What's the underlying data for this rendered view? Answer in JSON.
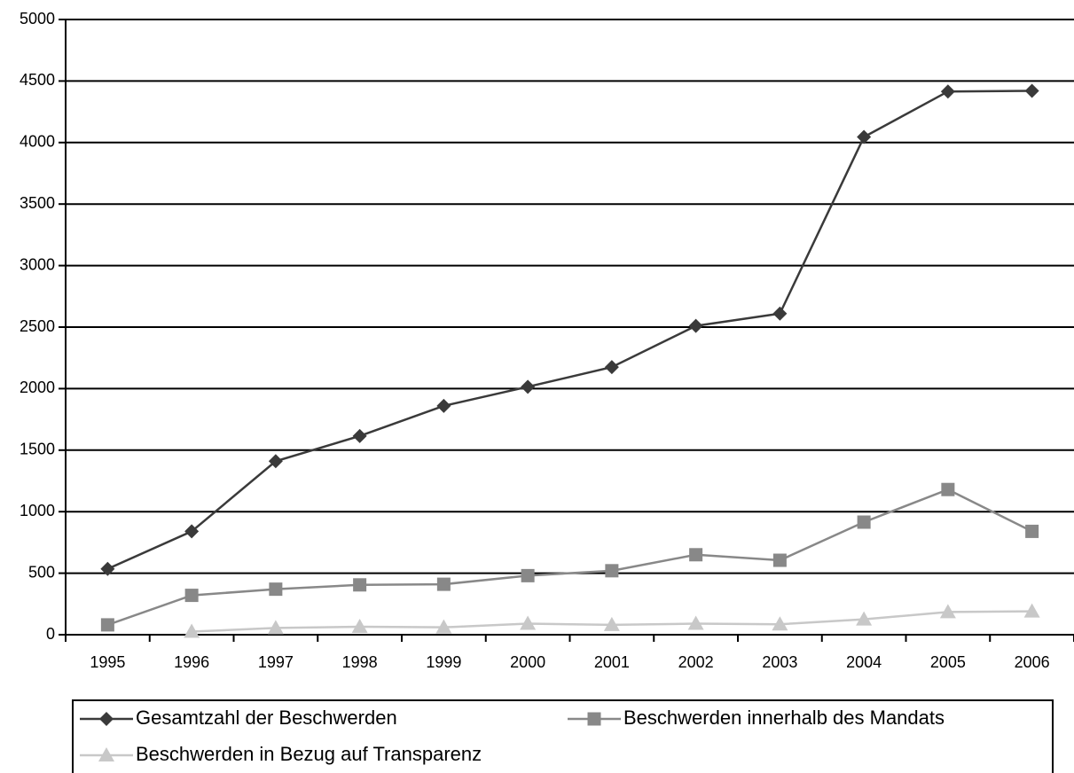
{
  "chart_data": {
    "type": "line",
    "categories": [
      "1995",
      "1996",
      "1997",
      "1998",
      "1999",
      "2000",
      "2001",
      "2002",
      "2003",
      "2004",
      "2005",
      "2006"
    ],
    "series": [
      {
        "name": "Gesamtzahl der Beschwerden",
        "color": "#3a3a3a",
        "marker": "diamond",
        "values": [
          535,
          840,
          1410,
          1615,
          1860,
          2015,
          2175,
          2510,
          2610,
          4045,
          4415,
          4420
        ]
      },
      {
        "name": "Beschwerden innerhalb des Mandats",
        "color": "#888888",
        "marker": "square",
        "values": [
          80,
          320,
          370,
          405,
          410,
          480,
          520,
          650,
          605,
          915,
          1180,
          840
        ]
      },
      {
        "name": "Beschwerden in Bezug auf Transparenz",
        "color": "#c8c8c8",
        "marker": "triangle",
        "values": [
          null,
          25,
          55,
          65,
          60,
          90,
          80,
          90,
          85,
          125,
          185,
          190
        ]
      }
    ],
    "ylim": [
      0,
      5000
    ],
    "yticks": [
      0,
      500,
      1000,
      1500,
      2000,
      2500,
      3000,
      3500,
      4000,
      4500,
      5000
    ],
    "grid": true,
    "legend": "bottom"
  }
}
